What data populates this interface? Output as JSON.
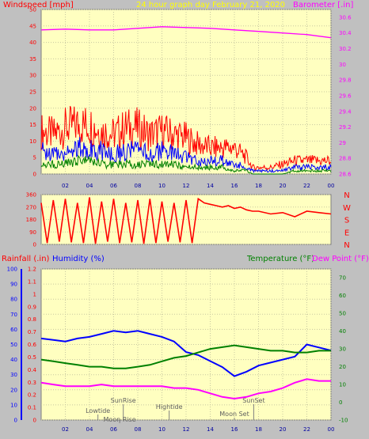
{
  "chart_data": [
    {
      "type": "line",
      "panel": "wind-barometer",
      "title": "24 hour graph day   February 21, 2020",
      "left_axis_label": "Windspeed [mph]",
      "right_axis_label": "Barometer [.in]",
      "xlim": [
        0,
        24
      ],
      "x_ticks": [
        2,
        4,
        6,
        8,
        10,
        12,
        14,
        16,
        18,
        20,
        22,
        0
      ],
      "x_tick_labels": [
        "02",
        "04",
        "06",
        "08",
        "10",
        "12",
        "14",
        "16",
        "18",
        "20",
        "22",
        "00"
      ],
      "left_ylim": [
        0,
        50
      ],
      "left_ticks": [
        0,
        5,
        10,
        15,
        20,
        25,
        30,
        35,
        40,
        45,
        50
      ],
      "right_ylim": [
        28.6,
        30.7
      ],
      "right_ticks": [
        "28.6",
        "28.8",
        "29",
        "29.2",
        "29.4",
        "29.6",
        "29.8",
        "30",
        "30.2",
        "30.4",
        "30.6"
      ],
      "colors": {
        "gust": "#ff0000",
        "speed": "#0000ff",
        "average": "#008000",
        "barometer": "#ff00ff"
      },
      "series": [
        {
          "key": "gust",
          "axis": "left",
          "color": "#ff0000",
          "x": [
            0,
            1,
            2,
            3,
            4,
            5,
            6,
            7,
            8,
            9,
            10,
            11,
            12,
            13,
            14,
            15,
            16,
            17,
            17.5,
            18,
            19,
            20,
            21,
            22,
            23,
            24
          ],
          "y": [
            13,
            12,
            14,
            15,
            15,
            13,
            12,
            14,
            14,
            12,
            13,
            12,
            11,
            9,
            8,
            8,
            8,
            5,
            2,
            2,
            2,
            3,
            4,
            4,
            4,
            4
          ]
        },
        {
          "key": "speed",
          "axis": "left",
          "color": "#0000ff",
          "x": [
            0,
            1,
            2,
            3,
            4,
            5,
            6,
            7,
            8,
            9,
            10,
            11,
            12,
            13,
            14,
            15,
            16,
            17,
            17.5,
            18,
            19,
            20,
            21,
            22,
            23,
            24
          ],
          "y": [
            7,
            6,
            7,
            8,
            8,
            7,
            6,
            7,
            7,
            6,
            7,
            6,
            5,
            4,
            4,
            4,
            3,
            2,
            1,
            1,
            1,
            1,
            2,
            2,
            2,
            2
          ]
        },
        {
          "key": "average",
          "axis": "left",
          "color": "#008000",
          "x": [
            0,
            1,
            2,
            3,
            4,
            5,
            6,
            7,
            8,
            9,
            10,
            11,
            12,
            13,
            14,
            15,
            16,
            17,
            17.5,
            18,
            19,
            20,
            21,
            22,
            23,
            24
          ],
          "y": [
            3,
            3,
            3,
            4,
            4,
            3,
            3,
            3,
            3,
            3,
            3,
            3,
            2,
            2,
            2,
            2,
            1,
            1,
            0,
            0,
            0,
            0,
            1,
            1,
            1,
            1
          ]
        },
        {
          "key": "barometer",
          "axis": "right",
          "color": "#ff00ff",
          "x": [
            0,
            2,
            4,
            6,
            8,
            10,
            12,
            14,
            16,
            18,
            20,
            22,
            24
          ],
          "y": [
            30.44,
            30.45,
            30.44,
            30.44,
            30.46,
            30.48,
            30.47,
            30.46,
            30.44,
            30.42,
            30.4,
            30.38,
            30.34
          ]
        }
      ]
    },
    {
      "type": "scatter",
      "panel": "wind-direction",
      "xlim": [
        0,
        24
      ],
      "ylim": [
        0,
        360
      ],
      "y_ticks": [
        0,
        90,
        180,
        270,
        360
      ],
      "compass_labels": [
        "N",
        "W",
        "S",
        "E",
        "N"
      ],
      "color": "#ff0000",
      "x": [
        0,
        0.5,
        1,
        1.5,
        2,
        2.5,
        3,
        3.5,
        4,
        4.5,
        5,
        5.5,
        6,
        6.5,
        7,
        7.5,
        8,
        8.5,
        9,
        9.5,
        10,
        10.5,
        11,
        11.5,
        12,
        12.5,
        13,
        13.5,
        14,
        14.5,
        15,
        15.5,
        16,
        16.5,
        17,
        17.5,
        18,
        19,
        20,
        21,
        22,
        23,
        24
      ],
      "y": [
        300,
        10,
        320,
        20,
        330,
        15,
        300,
        10,
        340,
        5,
        310,
        20,
        330,
        10,
        300,
        15,
        320,
        5,
        330,
        10,
        310,
        20,
        300,
        15,
        320,
        10,
        330,
        300,
        290,
        280,
        270,
        280,
        260,
        270,
        250,
        240,
        240,
        220,
        230,
        200,
        240,
        230,
        220
      ]
    },
    {
      "type": "line",
      "panel": "rain-humidity-temperature",
      "labels": {
        "rainfall": "Rainfall (.in)",
        "humidity": "Humidity (%)",
        "temperature": "Temperature (°F)",
        "dewpoint": "Dew Point (°F)"
      },
      "xlim": [
        0,
        24
      ],
      "x_ticks": [
        2,
        4,
        6,
        8,
        10,
        12,
        14,
        16,
        18,
        20,
        22,
        0
      ],
      "x_tick_labels": [
        "02",
        "04",
        "06",
        "08",
        "10",
        "12",
        "14",
        "16",
        "18",
        "20",
        "22",
        "00"
      ],
      "humidity_ylim": [
        0,
        100
      ],
      "humidity_ticks": [
        0,
        10,
        20,
        30,
        40,
        50,
        60,
        70,
        80,
        90,
        100
      ],
      "rain_ylim": [
        0,
        1.2
      ],
      "rain_ticks": [
        "0",
        "0.1",
        "0.2",
        "0.3",
        "0.4",
        "0.5",
        "0.6",
        "0.7",
        "0.8",
        "0.9",
        "1",
        "1.1",
        "1.2"
      ],
      "temp_ylim": [
        -10,
        75
      ],
      "temp_ticks": [
        -10,
        0,
        10,
        20,
        30,
        40,
        50,
        60,
        70
      ],
      "colors": {
        "humidity": "#0000ff",
        "temperature": "#008000",
        "dewpoint": "#ff00ff",
        "rain": "#ff0000"
      },
      "series": [
        {
          "key": "humidity",
          "axis": "humidity",
          "color": "#0000ff",
          "x": [
            0,
            1,
            2,
            3,
            4,
            5,
            6,
            7,
            8,
            9,
            10,
            11,
            12,
            13,
            14,
            15,
            16,
            17,
            18,
            19,
            20,
            21,
            22,
            23,
            24
          ],
          "y": [
            54,
            53,
            52,
            54,
            55,
            57,
            59,
            58,
            59,
            57,
            55,
            52,
            45,
            43,
            39,
            35,
            29,
            32,
            36,
            38,
            40,
            42,
            50,
            48,
            46
          ]
        },
        {
          "key": "temperature",
          "axis": "temp",
          "color": "#008000",
          "x": [
            0,
            1,
            2,
            3,
            4,
            5,
            6,
            7,
            8,
            9,
            10,
            11,
            12,
            13,
            14,
            15,
            16,
            17,
            18,
            19,
            20,
            21,
            22,
            23,
            24
          ],
          "y": [
            24,
            23,
            22,
            21,
            20,
            20,
            19,
            19,
            20,
            21,
            23,
            25,
            26,
            28,
            30,
            31,
            32,
            31,
            30,
            29,
            29,
            28,
            28,
            29,
            29
          ]
        },
        {
          "key": "dewpoint",
          "axis": "temp",
          "color": "#ff00ff",
          "x": [
            0,
            1,
            2,
            3,
            4,
            5,
            6,
            7,
            8,
            9,
            10,
            11,
            12,
            13,
            14,
            15,
            16,
            17,
            18,
            19,
            20,
            21,
            22,
            23,
            24
          ],
          "y": [
            11,
            10,
            9,
            9,
            9,
            10,
            9,
            9,
            9,
            9,
            9,
            8,
            8,
            7,
            5,
            3,
            2,
            3,
            5,
            6,
            8,
            11,
            13,
            12,
            12
          ]
        }
      ],
      "annotations": [
        {
          "text": "Lowtide",
          "x": 4.7
        },
        {
          "text": "SunRise",
          "x": 6.8
        },
        {
          "text": "Moon Rise",
          "x": 6.5
        },
        {
          "text": "Hightide",
          "x": 10.6
        },
        {
          "text": "SunSet",
          "x": 17.6
        },
        {
          "text": "Moon Set",
          "x": 16.0
        }
      ]
    }
  ]
}
